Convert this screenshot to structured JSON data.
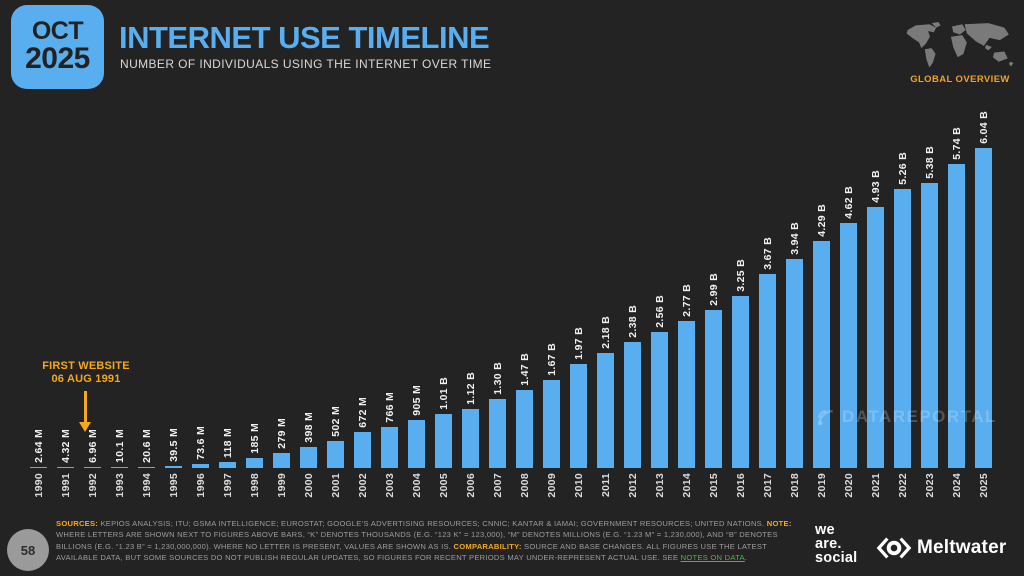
{
  "header": {
    "date_month": "OCT",
    "date_year": "2025",
    "title": "INTERNET USE TIMELINE",
    "subtitle": "NUMBER OF INDIVIDUALS USING THE INTERNET OVER TIME",
    "overview_label": "GLOBAL OVERVIEW"
  },
  "annotation": {
    "line1": "FIRST WEBSITE",
    "line2": "06 AUG 1991"
  },
  "watermark": {
    "text": "DATAREPORTAL"
  },
  "chart_data": {
    "type": "bar",
    "title": "INTERNET USE TIMELINE",
    "subtitle": "NUMBER OF INDIVIDUALS USING THE INTERNET OVER TIME",
    "categories": [
      "1990",
      "1991",
      "1992",
      "1993",
      "1994",
      "1995",
      "1996",
      "1997",
      "1998",
      "1999",
      "2000",
      "2001",
      "2002",
      "2003",
      "2004",
      "2005",
      "2006",
      "2007",
      "2008",
      "2009",
      "2010",
      "2011",
      "2012",
      "2013",
      "2014",
      "2015",
      "2016",
      "2017",
      "2018",
      "2019",
      "2020",
      "2021",
      "2022",
      "2023",
      "2024",
      "2025"
    ],
    "values_millions": [
      2.64,
      4.32,
      6.96,
      10.1,
      20.6,
      39.5,
      73.6,
      118,
      185,
      279,
      398,
      502,
      672,
      766,
      905,
      1010,
      1120,
      1300,
      1470,
      1670,
      1970,
      2180,
      2380,
      2560,
      2770,
      2990,
      3250,
      3670,
      3940,
      4290,
      4620,
      4930,
      5260,
      5380,
      5740,
      6040
    ],
    "bar_labels": [
      "2.64 M",
      "4.32 M",
      "6.96 M",
      "10.1 M",
      "20.6 M",
      "39.5 M",
      "73.6 M",
      "118 M",
      "185 M",
      "279 M",
      "398 M",
      "502 M",
      "672 M",
      "766 M",
      "905 M",
      "1.01 B",
      "1.12 B",
      "1.30 B",
      "1.47 B",
      "1.67 B",
      "1.97 B",
      "2.18 B",
      "2.38 B",
      "2.56 B",
      "2.77 B",
      "2.99 B",
      "3.25 B",
      "3.67 B",
      "3.94 B",
      "4.29 B",
      "4.62 B",
      "4.93 B",
      "5.26 B",
      "5.38 B",
      "5.74 B",
      "6.04 B"
    ],
    "bar_color": "#58AEEF",
    "xlabel": "",
    "ylabel": "",
    "ylim_millions": [
      0,
      6040
    ],
    "grid": false,
    "legend": null,
    "label_rotation": "vertical"
  },
  "footer": {
    "page_number": "58",
    "sources_label": "SOURCES:",
    "sources_text": " KEPIOS ANALYSIS; ITU; GSMA INTELLIGENCE; EUROSTAT; GOOGLE’S ADVERTISING RESOURCES; CNNIC; KANTAR & IAMAI; GOVERNMENT RESOURCES; UNITED NATIONS. ",
    "note_label": "NOTE:",
    "note_text": " WHERE LETTERS ARE SHOWN NEXT TO FIGURES ABOVE BARS, “K” DENOTES THOUSANDS (E.G. “123 K” = 123,000), “M” DENOTES MILLIONS (E.G. “1.23 M” = 1,230,000), AND “B” DENOTES BILLIONS (E.G. “1.23 B” = 1,230,000,000). WHERE NO LETTER IS PRESENT, VALUES ARE SHOWN AS IS. ",
    "comparability_label": "COMPARABILITY:",
    "comparability_text": " SOURCE AND BASE CHANGES. ALL FIGURES USE THE LATEST AVAILABLE DATA, BUT SOME SOURCES DO NOT PUBLISH REGULAR UPDATES, SO FIGURES FOR RECENT PERIODS MAY UNDER-REPRESENT ACTUAL USE. SEE ",
    "notes_link": "NOTES ON DATA",
    "period": "."
  },
  "branding": {
    "we_are_social": {
      "line1": "we",
      "line2": "are.",
      "line3": "social"
    },
    "meltwater_label": "Meltwater"
  },
  "colors": {
    "background": "#232323",
    "accent_blue": "#58AEEF",
    "accent_orange": "#F5A81C",
    "accent_green": "#4CB648",
    "map_gray": "#7A7A7A"
  }
}
